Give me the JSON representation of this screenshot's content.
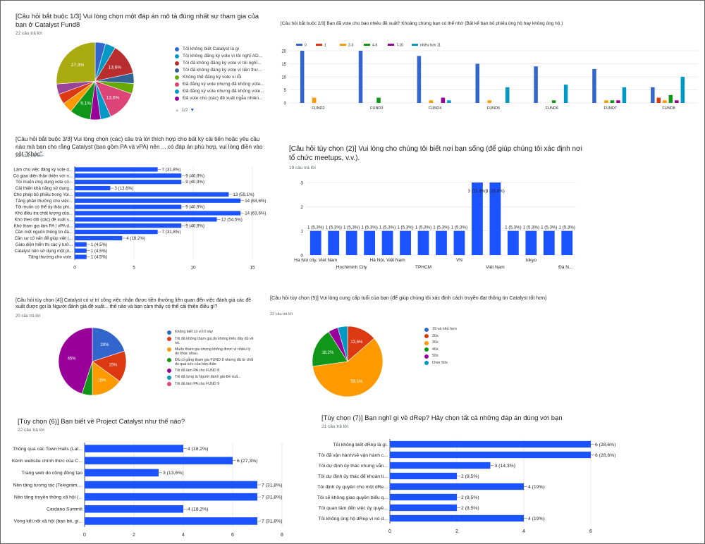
{
  "colors": {
    "blue": "#3366cc",
    "red": "#dc3912",
    "orange": "#ff9900",
    "green": "#109618",
    "purple": "#990099",
    "teal": "#0099c6",
    "pink": "#dd4477",
    "lime": "#66aa00",
    "darkred": "#b82e2e",
    "navy": "#316395",
    "olive": "#aaaa11",
    "grid": "#d8d8d8",
    "axis": "#333333",
    "text": "#222222",
    "primary": "#1a53ff"
  },
  "q1": {
    "title": "[Câu hỏi bắt buộc 1/3] Vui lòng chọn một đáp án mô tả đúng nhất sự tham gia của bạn ở Catalyst Fund8",
    "responses": "22 câu trả lời",
    "pager": "1/2",
    "chart_data": {
      "type": "pie",
      "slices": [
        {
          "label": "Tôi không biết Catalyst là gì",
          "value": 4.5,
          "color": "#3366cc",
          "pct": ""
        },
        {
          "label": "Tôi không đăng ký vote vì tôi nghĩ AD...",
          "value": 4.5,
          "color": "#0099c6",
          "pct": ""
        },
        {
          "label": "Tôi đã không đăng ký vote vì tôi nghĩ...",
          "value": 13.6,
          "color": "#b82e2e",
          "pct": "13,6%"
        },
        {
          "label": "Tôi đã không đăng ký vote vì tiền thư...",
          "value": 4.5,
          "color": "#316395",
          "pct": ""
        },
        {
          "label": "Không thể đăng ký vote vì lỗi",
          "value": 4.5,
          "color": "#66aa00",
          "pct": ""
        },
        {
          "label": "Đã đăng ký vote nhưng đã không vote...",
          "value": 13.6,
          "color": "#dd4477",
          "pct": "13,6%"
        },
        {
          "label": "Đã đăng ký vote nhưng đã không vote...",
          "value": 4.5,
          "color": "#0099c6",
          "pct": ""
        },
        {
          "label": "Đã vote cho (các) đề xuất ngẫu nhiên...",
          "value": 4.5,
          "color": "#990099",
          "pct": ""
        },
        {
          "label": "",
          "value": 9.1,
          "color": "#109618",
          "pct": "9,1%"
        },
        {
          "label": "",
          "value": 4.5,
          "color": "#ff9900",
          "pct": ""
        },
        {
          "label": "",
          "value": 4.5,
          "color": "#dc3912",
          "pct": ""
        },
        {
          "label": "",
          "value": 4.5,
          "color": "#994499",
          "pct": ""
        },
        {
          "label": "",
          "value": 27.3,
          "color": "#aaaa11",
          "pct": "27,3%"
        }
      ]
    }
  },
  "q2": {
    "title": "[Câu hỏi bắt buộc 2/3] Bạn đã vote cho bao nhiêu đề xuất? Khoảng chừng bạn có thể nhớ (Bất kể bạn bỏ phiếu ủng hộ hay không ủng hộ.)",
    "chart_data": {
      "type": "bar",
      "categories": [
        "FUND2",
        "FUND3",
        "FUND4",
        "FUND5",
        "FUND6",
        "FUND7",
        "FUND8"
      ],
      "series": [
        {
          "name": "0",
          "color": "#3366cc",
          "values": [
            20,
            20,
            18,
            15,
            14,
            13,
            6
          ]
        },
        {
          "name": "1",
          "color": "#dc3912",
          "values": [
            0,
            0,
            0,
            0,
            0,
            0,
            2
          ]
        },
        {
          "name": "2-3",
          "color": "#ff9900",
          "values": [
            2,
            0,
            1,
            1,
            0,
            1,
            1
          ]
        },
        {
          "name": "4-6",
          "color": "#109618",
          "values": [
            0,
            2,
            0,
            0,
            1,
            1,
            3
          ]
        },
        {
          "name": "7-10",
          "color": "#990099",
          "values": [
            0,
            0,
            2,
            0,
            0,
            1,
            1
          ]
        },
        {
          "name": "nhiều hơn 11",
          "color": "#0099c6",
          "values": [
            0,
            0,
            1,
            6,
            7,
            6,
            10
          ]
        }
      ],
      "yticks": [
        0,
        5,
        10,
        15,
        20
      ],
      "ylim": [
        0,
        20
      ]
    }
  },
  "q3": {
    "title": "[Câu hỏi bắt buộc 3/3] Vui lòng chọn (các) câu trả lời thích hợp cho bất kỳ cải tiến hoặc yêu cầu nào mà bạn cho rằng Catalyst (bao gồm PA và vPA) nên ... có đáp án phù hợp, vui lòng điền vào cột \"Khác\".",
    "responses": "22 câu trả lời",
    "chart_data": {
      "type": "bar",
      "orientation": "horizontal",
      "xlim": [
        0,
        15
      ],
      "xticks": [
        0,
        5,
        10,
        15
      ],
      "categories": [
        "Làm cho việc đăng ký vote d...",
        "Có giao diện thân thiện với n...",
        "Tôi muốn ứng dụng vote có...",
        "Cải thiện khả năng sử dụng...",
        "Cho phép bỏ phiếu trong Yor...",
        "Tăng phần thưởng cho việc...",
        "Tôi muốn có thể ủy thác phi...",
        "Khó điều tra chất lượng của...",
        "Khó theo dõi (các) đề xuất s...",
        "Khó tham gia làm PA / vPA d...",
        "Cần một nguồn thông tin đá...",
        "Cần sự cố vấn để giúp việt (...",
        "Giao diện hiển thị các ý tưở...",
        "Catalyst nên sử dụng một pl...",
        "Tăng thưởng cho vote."
      ],
      "values": [
        7,
        9,
        9,
        3,
        13,
        14,
        9,
        14,
        12,
        9,
        7,
        4,
        1,
        1,
        1
      ],
      "labels": [
        "7 (31,8%)",
        "9 (40,9%)",
        "9 (40,9%)",
        "3 (13,6%)",
        "13 (59,1%)",
        "14 (63,6%)",
        "9 (40,9%)",
        "14 (63,6%)",
        "12 (54,5%)",
        "9 (40,9%)",
        "7 (31,8%)",
        "4 (18,2%)",
        "1 (4,5%)",
        "1 (4,5%)",
        "1 (4,5%)"
      ]
    }
  },
  "q4": {
    "title": "[Câu hỏi tùy chọn (2)] Vui lòng cho chúng tôi biết nơi bạn sống (để giúp chúng tôi xác định nơi tổ chức meetups, v.v.).",
    "responses": "19 câu trả lời",
    "chart_data": {
      "type": "bar",
      "ylim": [
        0,
        3
      ],
      "yticks": [
        0,
        1,
        2,
        3
      ],
      "values": [
        1,
        1,
        1,
        1,
        1,
        1,
        1,
        1,
        1,
        3,
        3,
        1,
        1,
        1,
        1
      ],
      "labels": [
        "1 (5,3%)",
        "1 (5,3%)",
        "1 (5,3%)",
        "1 (5,3%)",
        "1 (5,3%)",
        "1 (5,3%)",
        "1 (5,3%)",
        "1 (5,3%)",
        "1 (5,3%)",
        "3 (15,8%)",
        "3 (15,8%)",
        "1 (5,3%)",
        "1 (5,3%)",
        "1 (5,3%)",
        "1 (5,3%)"
      ],
      "xlabels_top": [
        "Ha Noi city, Viet Nam",
        "Hà Nội, Việt Nam",
        "VN",
        "tokyo"
      ],
      "xlabels_bottom": [
        "Hochiminh City",
        "TPHCM",
        "Việt Nam",
        "Đà N..."
      ]
    }
  },
  "q5": {
    "title": "[Câu hỏi tùy chọn (4)] Catalyst có vị trí công việc nhận được tiền thưởng liên quan đến việc đánh giá các đề xuất được gọi là Người đánh giá đề xuất... thế nào và bạn cảm thấy có thể cải thiện điều gì?",
    "responses": "20 câu trả lời",
    "chart_data": {
      "type": "pie",
      "slices": [
        {
          "label": "Không biết có vị trí này",
          "value": 20,
          "color": "#3366cc",
          "pct": "20%"
        },
        {
          "label": "Tôi đã không tham gia do không hiểu đầy đủ về nó.",
          "value": 15,
          "color": "#dc3912",
          "pct": "15%"
        },
        {
          "label": "Muốn tham gia nhưng không được vì nhiều lý do khác nhau.",
          "value": 15,
          "color": "#ff9900",
          "pct": "15%"
        },
        {
          "label": "Đã cố gắng tham gia FUND 8 nhưng đã từ chối do quá sức của bản thân",
          "value": 5,
          "color": "#109618",
          "pct": ""
        },
        {
          "label": "Tôi đã làm PA cho FUND 8.",
          "value": 45,
          "color": "#990099",
          "pct": "45%"
        },
        {
          "label": "Tôi đã từng là Người đánh giá Đề xuấ...",
          "value": 0,
          "color": "#0099c6",
          "pct": ""
        },
        {
          "label": "Tôi đã làm PA cho FUND 9",
          "value": 0,
          "color": "#dd4477",
          "pct": ""
        }
      ]
    }
  },
  "q6": {
    "title": "[Câu hỏi tùy chọn (5)] Vui lòng cung cấp tuổi của bạn (để giúp chúng tôi xác định cách truyền đạt thông tin Catalyst tốt hơn)",
    "responses": "22 câu trả lời",
    "chart_data": {
      "type": "pie",
      "slices": [
        {
          "label": "19 và nhỏ hơn",
          "value": 0,
          "color": "#3366cc",
          "pct": ""
        },
        {
          "label": "20s",
          "value": 13.6,
          "color": "#dc3912",
          "pct": "13,6%"
        },
        {
          "label": "30s",
          "value": 59.1,
          "color": "#ff9900",
          "pct": "59,1%"
        },
        {
          "label": "40s",
          "value": 18.2,
          "color": "#109618",
          "pct": "18,2%"
        },
        {
          "label": "50s",
          "value": 4.5,
          "color": "#990099",
          "pct": ""
        },
        {
          "label": "Over 50s",
          "value": 4.5,
          "color": "#0099c6",
          "pct": ""
        }
      ]
    }
  },
  "q7": {
    "title": "[Tùy chọn (6)] Bạn biết về Project Catalyst như thế nào?",
    "responses": "22 câu trả lời",
    "chart_data": {
      "type": "bar",
      "orientation": "horizontal",
      "xlim": [
        0,
        8
      ],
      "xticks": [
        0,
        2,
        4,
        6,
        8
      ],
      "categories": [
        "Thông qua các Town Halls (Lat...",
        "Kênh website chính thức của C...",
        "Trang web do cộng đồng tạo",
        "Nền tảng tương tác (Telegram,...",
        "Nền tảng truyền thông xã hội (...",
        "Cardano Summit",
        "Vòng kết nối xã hội (bạn bè, gi..."
      ],
      "values": [
        4,
        6,
        3,
        7,
        7,
        4,
        7
      ],
      "labels": [
        "4 (18,2%)",
        "6 (27,3%)",
        "3 (13,6%)",
        "7 (31,8%)",
        "7 (31,8%)",
        "4 (18,2%)",
        "7 (31,8%)"
      ]
    }
  },
  "q8": {
    "title": "[Tùy chọn (7)] Bạn nghĩ gì về dRep? Hãy chọn tất cả những đáp án đúng với bạn",
    "responses": "21 câu trả lời",
    "chart_data": {
      "type": "bar",
      "orientation": "horizontal",
      "xlim": [
        0,
        6
      ],
      "xticks": [
        0,
        2,
        4,
        6
      ],
      "categories": [
        "Tôi không biết dRep là gì.",
        "Tôi đã vận hành/sẽ vận hành c...",
        "Tôi dự định ủy thác nhưng vẫn...",
        "Tôi dự định ủy thác để khoán ti...",
        "Tôi định ủy quyền cho một dRe...",
        "Tôi sẽ không giao quyền biểu q...",
        "Tôi quan tâm đến việc ủy quyề...",
        "Tôi không ủng hộ dRep vì nó d..."
      ],
      "values": [
        6,
        6,
        3,
        2,
        4,
        2,
        2,
        4
      ],
      "labels": [
        "6 (28,6%)",
        "6 (28,6%)",
        "3 (14,3%)",
        "2 (9,5%)",
        "4 (19%)",
        "2 (9,5%)",
        "2 (9,5%)",
        "4 (19%)"
      ]
    }
  }
}
